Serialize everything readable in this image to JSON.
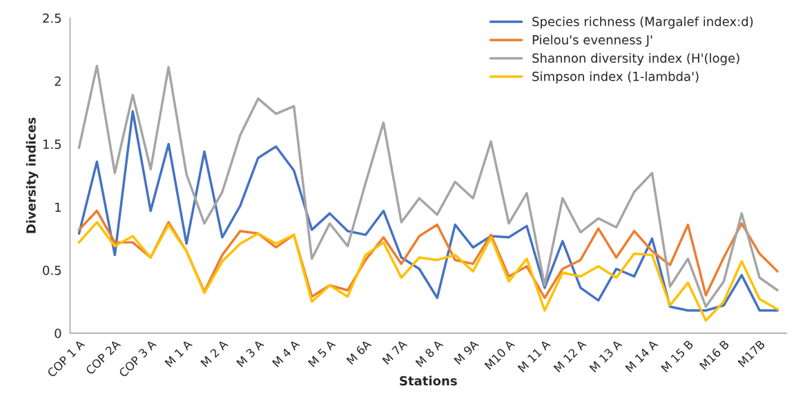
{
  "chart_data": {
    "type": "line",
    "xlabel": "Stations",
    "ylabel": "Diversity indices",
    "categories": [
      "COP 1 A",
      null,
      "COP 2A",
      null,
      "COP 3 A",
      null,
      "M 1 A",
      null,
      "M 2 A",
      null,
      "M 3 A",
      null,
      "M 4 A",
      null,
      "M 5 A",
      null,
      "M 6A",
      null,
      "M 7A",
      null,
      "M 8 A",
      null,
      "M 9A",
      null,
      "M10 A",
      null,
      "M 11 A",
      null,
      "M 12 A",
      null,
      "M 13 A",
      null,
      "M 14 A",
      null,
      "M 15 B",
      null,
      "M16 B",
      null,
      "M17B",
      null
    ],
    "series": [
      {
        "name": "Species richness (Margalef index:d)",
        "color": "#4472c4",
        "values": [
          0.79,
          1.36,
          0.62,
          1.76,
          0.97,
          1.5,
          0.71,
          1.44,
          0.76,
          1.01,
          1.39,
          1.48,
          1.29,
          0.82,
          0.95,
          0.81,
          0.78,
          0.97,
          0.6,
          0.51,
          0.28,
          0.86,
          0.68,
          0.77,
          0.76,
          0.85,
          0.36,
          0.73,
          0.36,
          0.26,
          0.51,
          0.45,
          0.75,
          0.21,
          0.18,
          0.18,
          0.22,
          0.46,
          0.18,
          0.18
        ]
      },
      {
        "name": "Pielou's evenness J'",
        "color": "#ed7d31",
        "values": [
          0.82,
          0.97,
          0.72,
          0.72,
          0.6,
          0.88,
          0.65,
          0.33,
          0.62,
          0.81,
          0.79,
          0.68,
          0.78,
          0.29,
          0.38,
          0.34,
          0.58,
          0.76,
          0.55,
          0.77,
          0.86,
          0.58,
          0.55,
          0.78,
          0.45,
          0.53,
          0.28,
          0.51,
          0.58,
          0.83,
          0.6,
          0.81,
          0.65,
          0.54,
          0.86,
          0.3,
          0.6,
          0.87,
          0.63,
          0.49
        ]
      },
      {
        "name": "Shannon diversity index (H'(loge)",
        "color": "#a5a5a5",
        "values": [
          1.47,
          2.12,
          1.27,
          1.89,
          1.3,
          2.11,
          1.26,
          0.87,
          1.12,
          1.57,
          1.86,
          1.74,
          1.8,
          0.59,
          0.87,
          0.69,
          1.19,
          1.67,
          0.88,
          1.07,
          0.94,
          1.2,
          1.07,
          1.52,
          0.87,
          1.11,
          0.38,
          1.07,
          0.8,
          0.91,
          0.84,
          1.12,
          1.27,
          0.37,
          0.59,
          0.21,
          0.41,
          0.95,
          0.44,
          0.34
        ]
      },
      {
        "name": "Simpson index (1-lambda')",
        "color": "#ffc000",
        "values": [
          0.72,
          0.88,
          0.69,
          0.77,
          0.6,
          0.86,
          0.65,
          0.32,
          0.57,
          0.71,
          0.79,
          0.71,
          0.78,
          0.25,
          0.38,
          0.29,
          0.62,
          0.72,
          0.44,
          0.6,
          0.58,
          0.62,
          0.49,
          0.76,
          0.41,
          0.59,
          0.18,
          0.48,
          0.45,
          0.53,
          0.44,
          0.63,
          0.62,
          0.22,
          0.4,
          0.1,
          0.25,
          0.57,
          0.27,
          0.19
        ]
      }
    ],
    "ylim": [
      0,
      2.5
    ],
    "yticks": [
      0,
      0.5,
      1,
      1.5,
      2,
      2.5
    ],
    "legend": "top right",
    "grid": false,
    "marker": "none",
    "line_style": "solid"
  }
}
